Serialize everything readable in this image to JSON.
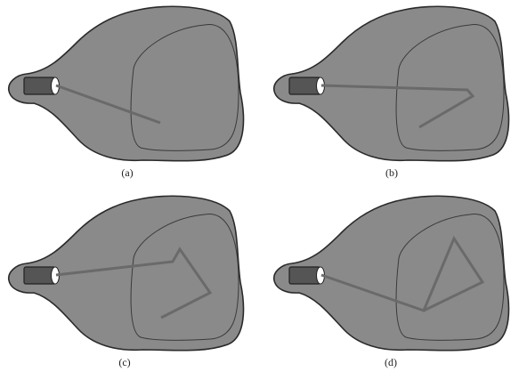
{
  "figure": {
    "colors": {
      "tube_fill": "#8a8a8a",
      "tube_outline": "#2a2a2a",
      "screen_outline": "#3a3a3a",
      "gun_body": "#555555",
      "gun_outline": "#222222",
      "gun_aperture": "#ffffff",
      "beam": "#6a6a6a"
    },
    "panels": [
      {
        "id": "a",
        "label": "(a)"
      },
      {
        "id": "b",
        "label": "(b)"
      },
      {
        "id": "c",
        "label": "(c)"
      },
      {
        "id": "d",
        "label": "(d)"
      }
    ]
  }
}
